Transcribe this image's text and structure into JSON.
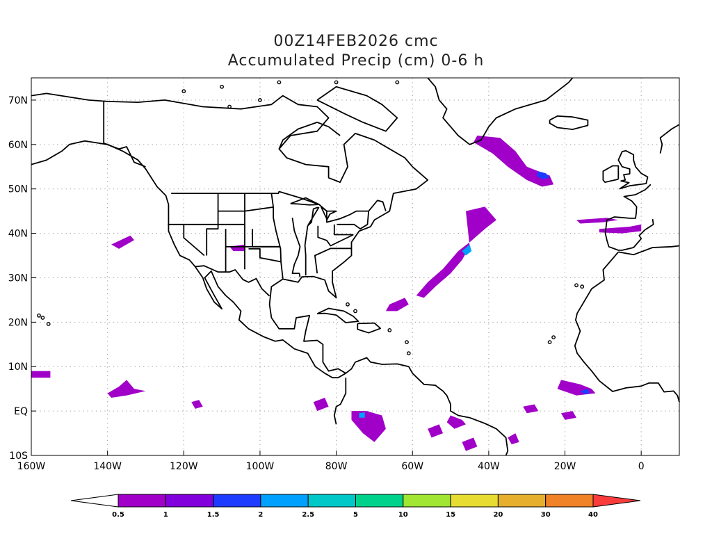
{
  "title": {
    "line1": "00Z14FEB2026 cmc",
    "line2": "Accumulated Precip (cm) 0-6 h"
  },
  "map": {
    "lon_range": [
      -160,
      10
    ],
    "lat_range": [
      -10,
      75
    ],
    "x_ticks": [
      {
        "lon": -160,
        "label": "160W"
      },
      {
        "lon": -140,
        "label": "140W"
      },
      {
        "lon": -120,
        "label": "120W"
      },
      {
        "lon": -100,
        "label": "100W"
      },
      {
        "lon": -80,
        "label": "80W"
      },
      {
        "lon": -60,
        "label": "60W"
      },
      {
        "lon": -40,
        "label": "40W"
      },
      {
        "lon": -20,
        "label": "20W"
      },
      {
        "lon": 0,
        "label": "0"
      }
    ],
    "y_ticks": [
      {
        "lat": 70,
        "label": "70N"
      },
      {
        "lat": 60,
        "label": "60N"
      },
      {
        "lat": 50,
        "label": "50N"
      },
      {
        "lat": 40,
        "label": "40N"
      },
      {
        "lat": 30,
        "label": "30N"
      },
      {
        "lat": 20,
        "label": "20N"
      },
      {
        "lat": 10,
        "label": "10N"
      },
      {
        "lat": 0,
        "label": "EQ"
      },
      {
        "lat": -10,
        "label": "10S"
      }
    ],
    "grid": "dotted"
  },
  "colorbar": {
    "labels": [
      "0.5",
      "1",
      "1.5",
      "2",
      "2.5",
      "5",
      "10",
      "15",
      "20",
      "30",
      "40"
    ],
    "colors": [
      "#ffffff",
      "#a000c8",
      "#8200dc",
      "#1e3cff",
      "#00a0ff",
      "#00c8c8",
      "#00d28c",
      "#a0e632",
      "#e6dc32",
      "#e6af2d",
      "#f08228",
      "#fa3c3c"
    ]
  }
}
